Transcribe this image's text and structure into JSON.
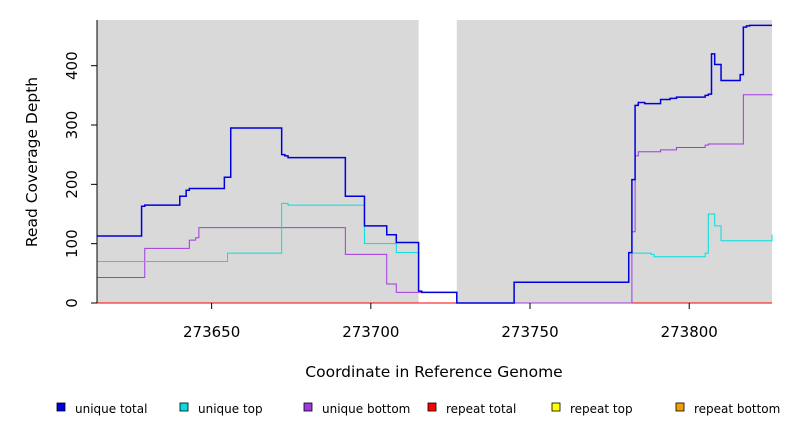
{
  "chart_data": {
    "type": "line",
    "step": true,
    "xlabel": "Coordinate in Reference Genome",
    "ylabel": "Read Coverage Depth",
    "xlim": [
      273614,
      273826
    ],
    "ylim": [
      0,
      477
    ],
    "xticks": [
      273650,
      273700,
      273750,
      273800
    ],
    "yticks": [
      0,
      100,
      200,
      300,
      400
    ],
    "grid": false,
    "background": "#d9d9d9",
    "gap": [
      273715,
      273727
    ],
    "legend_position": "bottom",
    "series": [
      {
        "name": "unique total",
        "color": "#0000dd",
        "x": [
          273614,
          273628,
          273629,
          273634,
          273640,
          273642,
          273643,
          273646,
          273654,
          273655,
          273656,
          273667,
          273672,
          273673,
          273674,
          273692,
          273698,
          273705,
          273708,
          273715,
          273716,
          273727,
          273745,
          273781,
          273782,
          273783,
          273784,
          273786,
          273789,
          273791,
          273794,
          273796,
          273805,
          273806,
          273807,
          273808,
          273810,
          273816,
          273817,
          273818,
          273819,
          273826
        ],
        "y": [
          113,
          163,
          165,
          165,
          180,
          190,
          193,
          193,
          212,
          212,
          295,
          295,
          250,
          248,
          245,
          180,
          130,
          115,
          102,
          20,
          18,
          0,
          35,
          85,
          208,
          333,
          338,
          336,
          336,
          343,
          345,
          347,
          350,
          352,
          420,
          402,
          375,
          385,
          465,
          467,
          468,
          468
        ]
      },
      {
        "name": "unique top",
        "color": "#00e0e0",
        "x": [
          273614,
          273634,
          273655,
          273656,
          273672,
          273673,
          273674,
          273698,
          273708,
          273715,
          273716,
          273727,
          273745,
          273781,
          273782,
          273788,
          273789,
          273805,
          273806,
          273807,
          273808,
          273810,
          273826
        ],
        "y": [
          70,
          70,
          84,
          84,
          168,
          168,
          165,
          100,
          85,
          20,
          18,
          0,
          35,
          85,
          84,
          82,
          78,
          84,
          150,
          150,
          130,
          105,
          115
        ]
      },
      {
        "name": "unique bottom",
        "color": "#a03ae0",
        "x": [
          273614,
          273628,
          273629,
          273640,
          273643,
          273645,
          273646,
          273667,
          273692,
          273705,
          273708,
          273727,
          273745,
          273781,
          273782,
          273783,
          273784,
          273791,
          273796,
          273805,
          273806,
          273816,
          273817,
          273826
        ],
        "y": [
          43,
          43,
          92,
          92,
          106,
          110,
          127,
          127,
          82,
          32,
          18,
          0,
          0,
          0,
          120,
          248,
          255,
          258,
          262,
          266,
          268,
          268,
          351,
          352
        ]
      },
      {
        "name": "repeat total",
        "color": "#ff0000",
        "x": [
          273614,
          273826
        ],
        "y": [
          0,
          0
        ]
      },
      {
        "name": "repeat top",
        "color": "#ffff00",
        "x": [
          273614,
          273826
        ],
        "y": [
          0,
          0
        ]
      },
      {
        "name": "repeat bottom",
        "color": "#f0a000",
        "x": [
          273614,
          273826
        ],
        "y": [
          0,
          0
        ]
      }
    ]
  }
}
